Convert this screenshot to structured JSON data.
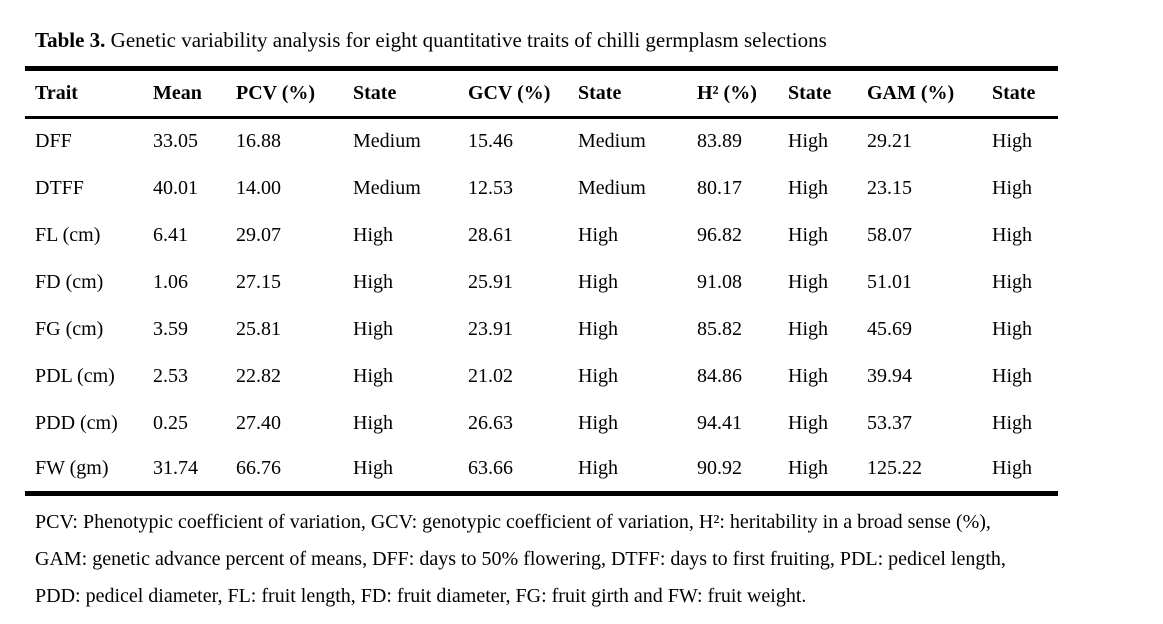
{
  "title": {
    "label": "Table 3.",
    "text": "Genetic variability analysis for eight quantitative traits of chilli germplasm selections"
  },
  "table": {
    "columns": [
      "Trait",
      "Mean",
      "PCV (%)",
      "State",
      "GCV (%)",
      "State",
      "H² (%)",
      "State",
      "GAM (%)",
      "State"
    ],
    "rows": [
      [
        "DFF",
        "33.05",
        "16.88",
        "Medium",
        "15.46",
        "Medium",
        "83.89",
        "High",
        "29.21",
        "High"
      ],
      [
        "DTFF",
        "40.01",
        "14.00",
        "Medium",
        "12.53",
        "Medium",
        "80.17",
        "High",
        "23.15",
        "High"
      ],
      [
        "FL (cm)",
        "6.41",
        "29.07",
        "High",
        "28.61",
        "High",
        "96.82",
        "High",
        "58.07",
        "High"
      ],
      [
        "FD (cm)",
        "1.06",
        "27.15",
        "High",
        "25.91",
        "High",
        "91.08",
        "High",
        "51.01",
        "High"
      ],
      [
        "FG (cm)",
        "3.59",
        "25.81",
        "High",
        "23.91",
        "High",
        "85.82",
        "High",
        "45.69",
        "High"
      ],
      [
        "PDL (cm)",
        "2.53",
        "22.82",
        "High",
        "21.02",
        "High",
        "84.86",
        "High",
        "39.94",
        "High"
      ],
      [
        "PDD (cm)",
        "0.25",
        "27.40",
        "High",
        "26.63",
        "High",
        "94.41",
        "High",
        "53.37",
        "High"
      ],
      [
        "FW (gm)",
        "31.74",
        "66.76",
        "High",
        "63.66",
        "High",
        "90.92",
        "High",
        "125.22",
        "High"
      ]
    ]
  },
  "footnote": {
    "lines": [
      "PCV: Phenotypic coefficient of variation, GCV: genotypic coefficient of variation, H²: heritability in a broad sense (%),",
      "GAM: genetic advance percent of means, DFF: days to 50% flowering, DTFF: days to first fruiting, PDL: pedicel length,",
      "PDD: pedicel diameter, FL: fruit length, FD: fruit diameter, FG: fruit girth and FW: fruit weight."
    ]
  },
  "colors": {
    "text": "#000000",
    "background": "#ffffff",
    "rule": "#000000"
  }
}
